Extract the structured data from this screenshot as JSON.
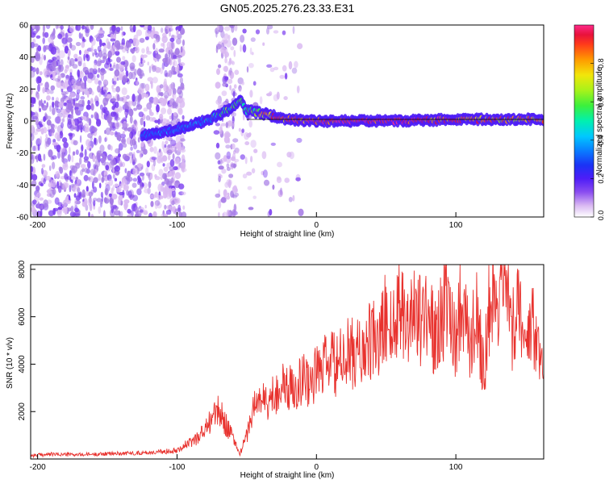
{
  "title": "GN05.2025.276.23.33.E31",
  "colors": {
    "snr_line": "#e8322e",
    "axis": "#000000",
    "zero_line": "#000000"
  },
  "chart_data": [
    {
      "type": "heatmap",
      "xlabel": "Height of straight line (km)",
      "ylabel": "Frequency (Hz)",
      "xlim": [
        -205,
        163
      ],
      "ylim": [
        -60,
        60
      ],
      "xticks": [
        -200,
        -100,
        0,
        100
      ],
      "yticks": [
        60,
        40,
        20,
        0,
        -20,
        -40,
        -60
      ],
      "colorbar": {
        "label": "Normalized spectral amplitude",
        "range": [
          0,
          1
        ],
        "ticks": [
          0.0,
          0.2,
          0.4,
          0.6,
          0.8
        ],
        "tick_labels": [
          "0.0",
          "0.2",
          "0.4",
          "0.6",
          "0.8"
        ]
      },
      "colormap": [
        "#ffffff",
        "#d9b8f2",
        "#a57ae6",
        "#7a3df0",
        "#4e1df7",
        "#1b33f5",
        "#0a78ff",
        "#00c8ff",
        "#00f0b0",
        "#3cf03c",
        "#a8f21a",
        "#f2e60a",
        "#ff9a00",
        "#ff3a1a",
        "#e8123c",
        "#ff2a8a"
      ],
      "trace": {
        "x": [
          -125,
          -110,
          -95,
          -80,
          -70,
          -60,
          -55,
          -50,
          -45,
          -40,
          -30,
          -20,
          0,
          20,
          60,
          100,
          130,
          163
        ],
        "freq": [
          -9,
          -7,
          -4,
          0,
          4,
          8,
          14,
          6,
          6,
          5,
          3,
          1,
          0,
          0,
          0,
          1,
          1,
          1
        ],
        "amplitude": [
          0.3,
          0.35,
          0.4,
          0.45,
          0.5,
          0.55,
          0.5,
          0.6,
          0.65,
          0.7,
          0.8,
          0.85,
          0.9,
          0.95,
          0.95,
          0.85,
          0.8,
          0.75
        ]
      }
    },
    {
      "type": "line",
      "xlabel": "Height of straight line (km)",
      "ylabel": "SNR (10 * v/v)",
      "xlim": [
        -205,
        163
      ],
      "ylim": [
        0,
        8200
      ],
      "xticks": [
        -200,
        -100,
        0,
        100
      ],
      "yticks": [
        2000,
        4000,
        6000,
        8000
      ],
      "series": [
        {
          "name": "SNR",
          "x": [
            -205,
            -190,
            -170,
            -150,
            -130,
            -110,
            -100,
            -90,
            -80,
            -75,
            -70,
            -65,
            -60,
            -55,
            -50,
            -45,
            -40,
            -35,
            -30,
            -25,
            -20,
            -15,
            -10,
            -5,
            0,
            5,
            10,
            15,
            20,
            25,
            30,
            35,
            40,
            45,
            50,
            55,
            60,
            65,
            70,
            75,
            80,
            85,
            90,
            95,
            100,
            105,
            110,
            115,
            120,
            125,
            130,
            135,
            140,
            145,
            150,
            155,
            160,
            163
          ],
          "y": [
            150,
            200,
            180,
            220,
            250,
            300,
            400,
            700,
            1200,
            1800,
            2000,
            1500,
            900,
            200,
            1000,
            2200,
            2600,
            2300,
            2800,
            3100,
            2900,
            3200,
            3400,
            3300,
            3600,
            3900,
            4100,
            3900,
            4300,
            4500,
            4400,
            4700,
            5000,
            4800,
            6200,
            5200,
            7200,
            5500,
            6800,
            5600,
            6700,
            4900,
            6300,
            6200,
            5200,
            7200,
            4400,
            6500,
            3600,
            7400,
            5200,
            8000,
            4800,
            7400,
            4200,
            5500,
            4200,
            3300
          ]
        }
      ]
    }
  ]
}
